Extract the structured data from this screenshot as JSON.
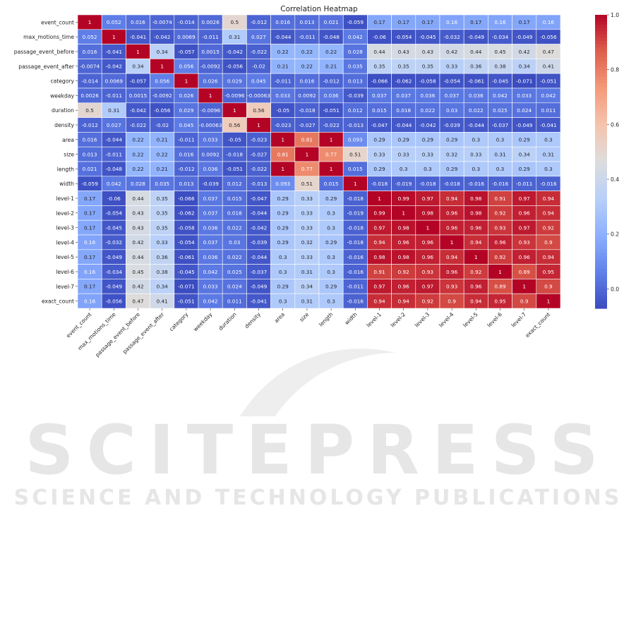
{
  "chart_data": {
    "type": "heatmap",
    "title": "Correlation Heatmap",
    "labels": [
      "event_count",
      "max_motions_time",
      "passage_event_before",
      "passage_event_after",
      "category",
      "weekday",
      "duration",
      "density",
      "area",
      "size",
      "length",
      "width",
      "level-1",
      "level-2",
      "level-3",
      "level-4",
      "level-5",
      "level-6",
      "level-7",
      "exact_count"
    ],
    "x_tick_labels": [
      "event_count",
      "max_motions_time",
      "passage_event_before",
      "passage_event_after",
      "category",
      "weekday",
      "duration",
      "density",
      "area",
      "size",
      "length",
      "width",
      "level-1",
      "level-2",
      "level-3",
      "level-4",
      "level-5",
      "level-6",
      "level-7",
      "exact_count"
    ],
    "y_tick_labels": [
      "event_count",
      "max_motions_time",
      "passage_event_before",
      "passage_event_after",
      "category",
      "weekday",
      "duration",
      "density",
      "area",
      "size",
      "length",
      "width",
      "level-1",
      "level-2",
      "level-3",
      "level-4",
      "level-5",
      "level-6",
      "level-7",
      "exact_count"
    ],
    "cell_text": [
      [
        "1",
        "0.052",
        "0.016",
        "-0.0074",
        "-0.014",
        "0.0026",
        "0.5",
        "-0.012",
        "0.016",
        "0.013",
        "0.021",
        "-0.059",
        "0.17",
        "0.17",
        "0.17",
        "0.16",
        "0.17",
        "0.16",
        "0.17",
        "0.16"
      ],
      [
        "0.052",
        "1",
        "-0.041",
        "-0.042",
        "0.0069",
        "-0.011",
        "0.31",
        "0.027",
        "-0.044",
        "-0.011",
        "-0.048",
        "0.042",
        "-0.06",
        "-0.054",
        "-0.045",
        "-0.032",
        "-0.049",
        "-0.034",
        "-0.049",
        "-0.056"
      ],
      [
        "0.016",
        "-0.041",
        "1",
        "0.34",
        "-0.057",
        "0.0015",
        "-0.042",
        "-0.022",
        "0.22",
        "0.22",
        "0.22",
        "0.028",
        "0.44",
        "0.43",
        "0.43",
        "0.42",
        "0.44",
        "0.45",
        "0.42",
        "0.47"
      ],
      [
        "-0.0074",
        "-0.042",
        "0.34",
        "1",
        "0.056",
        "-0.0092",
        "-0.056",
        "-0.02",
        "0.21",
        "0.22",
        "0.21",
        "0.035",
        "0.35",
        "0.35",
        "0.35",
        "0.33",
        "0.36",
        "0.38",
        "0.34",
        "0.41"
      ],
      [
        "-0.014",
        "0.0069",
        "-0.057",
        "0.056",
        "1",
        "0.026",
        "0.029",
        "0.045",
        "-0.011",
        "0.016",
        "-0.012",
        "0.013",
        "-0.066",
        "-0.062",
        "-0.058",
        "-0.054",
        "-0.061",
        "-0.045",
        "-0.071",
        "-0.051"
      ],
      [
        "0.0026",
        "-0.011",
        "0.0015",
        "-0.0092",
        "0.026",
        "1",
        "-0.0096",
        "-0.00063",
        "0.033",
        "0.0092",
        "0.036",
        "-0.039",
        "0.037",
        "0.037",
        "0.036",
        "0.037",
        "0.036",
        "0.042",
        "0.033",
        "0.042"
      ],
      [
        "0.5",
        "0.31",
        "-0.042",
        "-0.056",
        "0.029",
        "-0.0096",
        "1",
        "0.56",
        "-0.05",
        "-0.018",
        "-0.051",
        "0.012",
        "0.015",
        "0.018",
        "0.022",
        "0.03",
        "0.022",
        "0.025",
        "0.024",
        "0.011"
      ],
      [
        "-0.012",
        "0.027",
        "-0.022",
        "-0.02",
        "0.045",
        "-0.00063",
        "0.56",
        "1",
        "-0.023",
        "-0.027",
        "-0.022",
        "-0.013",
        "-0.047",
        "-0.044",
        "-0.042",
        "-0.039",
        "-0.044",
        "-0.037",
        "-0.049",
        "-0.041"
      ],
      [
        "0.016",
        "-0.044",
        "0.22",
        "0.21",
        "-0.011",
        "0.033",
        "-0.05",
        "-0.023",
        "1",
        "0.81",
        "1",
        "0.093",
        "0.29",
        "0.29",
        "0.29",
        "0.29",
        "0.3",
        "0.3",
        "0.29",
        "0.3"
      ],
      [
        "0.013",
        "-0.011",
        "0.22",
        "0.22",
        "0.016",
        "0.0092",
        "-0.018",
        "-0.027",
        "0.81",
        "1",
        "0.77",
        "0.51",
        "0.33",
        "0.33",
        "0.33",
        "0.32",
        "0.33",
        "0.31",
        "0.34",
        "0.31"
      ],
      [
        "0.021",
        "-0.048",
        "0.22",
        "0.21",
        "-0.012",
        "0.036",
        "-0.051",
        "-0.022",
        "1",
        "0.77",
        "1",
        "0.015",
        "0.29",
        "0.3",
        "0.3",
        "0.29",
        "0.3",
        "0.3",
        "0.29",
        "0.3"
      ],
      [
        "-0.059",
        "0.042",
        "0.028",
        "0.035",
        "0.013",
        "-0.039",
        "0.012",
        "-0.013",
        "0.093",
        "0.51",
        "0.015",
        "1",
        "-0.018",
        "-0.019",
        "-0.018",
        "-0.018",
        "-0.016",
        "-0.016",
        "-0.011",
        "-0.016"
      ],
      [
        "0.17",
        "-0.06",
        "0.44",
        "0.35",
        "-0.066",
        "0.037",
        "0.015",
        "-0.047",
        "0.29",
        "0.33",
        "0.29",
        "-0.018",
        "1",
        "0.99",
        "0.97",
        "0.94",
        "0.98",
        "0.91",
        "0.97",
        "0.94"
      ],
      [
        "0.17",
        "-0.054",
        "0.43",
        "0.35",
        "-0.062",
        "0.037",
        "0.018",
        "-0.044",
        "0.29",
        "0.33",
        "0.3",
        "-0.019",
        "0.99",
        "1",
        "0.98",
        "0.96",
        "0.98",
        "0.92",
        "0.96",
        "0.94"
      ],
      [
        "0.17",
        "-0.045",
        "0.43",
        "0.35",
        "-0.058",
        "0.036",
        "0.022",
        "-0.042",
        "0.29",
        "0.33",
        "0.3",
        "-0.018",
        "0.97",
        "0.98",
        "1",
        "0.96",
        "0.96",
        "0.93",
        "0.97",
        "0.92"
      ],
      [
        "0.16",
        "-0.032",
        "0.42",
        "0.33",
        "-0.054",
        "0.037",
        "0.03",
        "-0.039",
        "0.29",
        "0.32",
        "0.29",
        "-0.018",
        "0.94",
        "0.96",
        "0.96",
        "1",
        "0.94",
        "0.96",
        "0.93",
        "0.9"
      ],
      [
        "0.17",
        "-0.049",
        "0.44",
        "0.36",
        "-0.061",
        "0.036",
        "0.022",
        "-0.044",
        "0.3",
        "0.33",
        "0.3",
        "-0.016",
        "0.98",
        "0.98",
        "0.96",
        "0.94",
        "1",
        "0.92",
        "0.96",
        "0.94"
      ],
      [
        "0.16",
        "-0.034",
        "0.45",
        "0.38",
        "-0.045",
        "0.042",
        "0.025",
        "-0.037",
        "0.3",
        "0.31",
        "0.3",
        "-0.016",
        "0.91",
        "0.92",
        "0.93",
        "0.96",
        "0.92",
        "1",
        "0.89",
        "0.95"
      ],
      [
        "0.17",
        "-0.049",
        "0.42",
        "0.34",
        "-0.071",
        "0.033",
        "0.024",
        "-0.049",
        "0.29",
        "0.34",
        "0.29",
        "-0.011",
        "0.97",
        "0.96",
        "0.97",
        "0.93",
        "0.96",
        "0.89",
        "1",
        "0.9"
      ],
      [
        "0.16",
        "-0.056",
        "0.47",
        "0.41",
        "-0.051",
        "0.042",
        "0.011",
        "-0.041",
        "0.3",
        "0.31",
        "0.3",
        "-0.016",
        "0.94",
        "0.94",
        "0.92",
        "0.9",
        "0.94",
        "0.95",
        "0.9",
        "1"
      ]
    ],
    "colorbar": {
      "colormap": "coolwarm",
      "vmin": -0.071,
      "vmax": 1.0,
      "tick_labels": [
        "0.0",
        "0.2",
        "0.4",
        "0.6",
        "0.8",
        "1.0"
      ],
      "ticks": [
        0.0,
        0.2,
        0.4,
        0.6,
        0.8,
        1.0
      ]
    },
    "x_tick_rotation_deg": 45,
    "legend": "colorbar-right",
    "grid": false
  },
  "watermark": {
    "brand": "SCITEPRESS",
    "tagline": "SCIENCE AND TECHNOLOGY PUBLICATIONS",
    "color": "#e6e6e6"
  }
}
